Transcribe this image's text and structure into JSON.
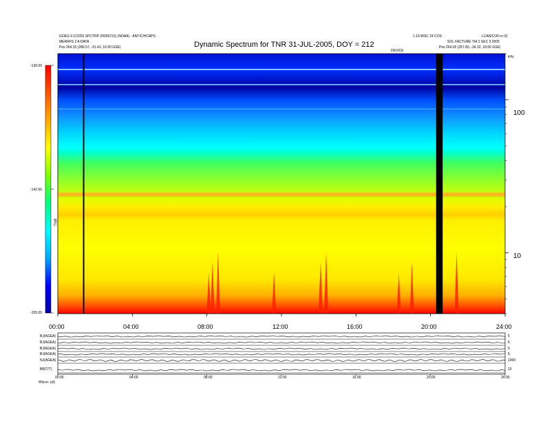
{
  "header": {
    "left_line1": "GOES-3 (CODS SPCTRP 20050731) (NOAA) · ANTIC/HCAPS",
    "left_line2": "MERRFS 2 A DATA",
    "left_line3": "Pos   264.15 (286.57, -31.43, 10.50 GSE)",
    "right_line1": "1.10 WSC 24 COS",
    "right_line2": "LCAN/COF+n 01",
    "right_line3": "SOL FACTURE TIA 2 SEC 3 2005",
    "right_line4": "Pos   264.03 (257.83, -34.32, 18.06 GSE)",
    "mini_label": "DEVICE",
    "corner_label": "kHz"
  },
  "chart_data": {
    "type": "heatmap",
    "title": "Dynamic Spectrum for TNR 31-JUL-2005, DOY = 212",
    "xlabel": "",
    "ylabel": "",
    "x_ticks": [
      "00:00",
      "04:00",
      "08:00",
      "12:00",
      "16:00",
      "20:00",
      "24:00"
    ],
    "x_range_hours": [
      0,
      24
    ],
    "y_scale": "log",
    "y_range_khz": [
      4,
      200
    ],
    "y_ticks": [
      "100",
      "10"
    ],
    "y_tick_values": [
      100,
      10
    ],
    "colorbar": {
      "range": [
        -155,
        -130
      ],
      "ticks": [
        "-130.00",
        "-142.50",
        "-155.00"
      ],
      "tick_values": [
        -130,
        -142.5,
        -155
      ],
      "label": "TNR",
      "colors": [
        "#0000a0",
        "#0000ff",
        "#00aaff",
        "#00ffff",
        "#00ff80",
        "#80ff00",
        "#ffff00",
        "#ffaa00",
        "#ff5500",
        "#ff0000"
      ]
    },
    "data_gaps_hours": [
      [
        1.35,
        1.4
      ],
      [
        20.3,
        20.65
      ]
    ],
    "bright_band_khz": 24,
    "bursts_hours": [
      8.1,
      8.3,
      8.6,
      11.6,
      14.1,
      14.4,
      18.3,
      19.0,
      21.4
    ]
  },
  "bottom_panel": {
    "traces": [
      {
        "label": "BJ(AGEA)",
        "scale": "5"
      },
      {
        "label": "BJ(AGEA)",
        "scale": "5"
      },
      {
        "label": "BJ(AGEA)",
        "scale": "5"
      },
      {
        "label": "BJ(AGEA)",
        "scale": "5"
      },
      {
        "label": "NJ(AGEA)",
        "scale": "1000"
      },
      {
        "label": "BB(T/T)",
        "scale": "10"
      }
    ],
    "x_ticks": [
      "00:00",
      "04:00",
      "08:00",
      "12:00",
      "16:00",
      "20:00",
      "24:00"
    ],
    "footer_label": "Wisco-  u(t)"
  }
}
